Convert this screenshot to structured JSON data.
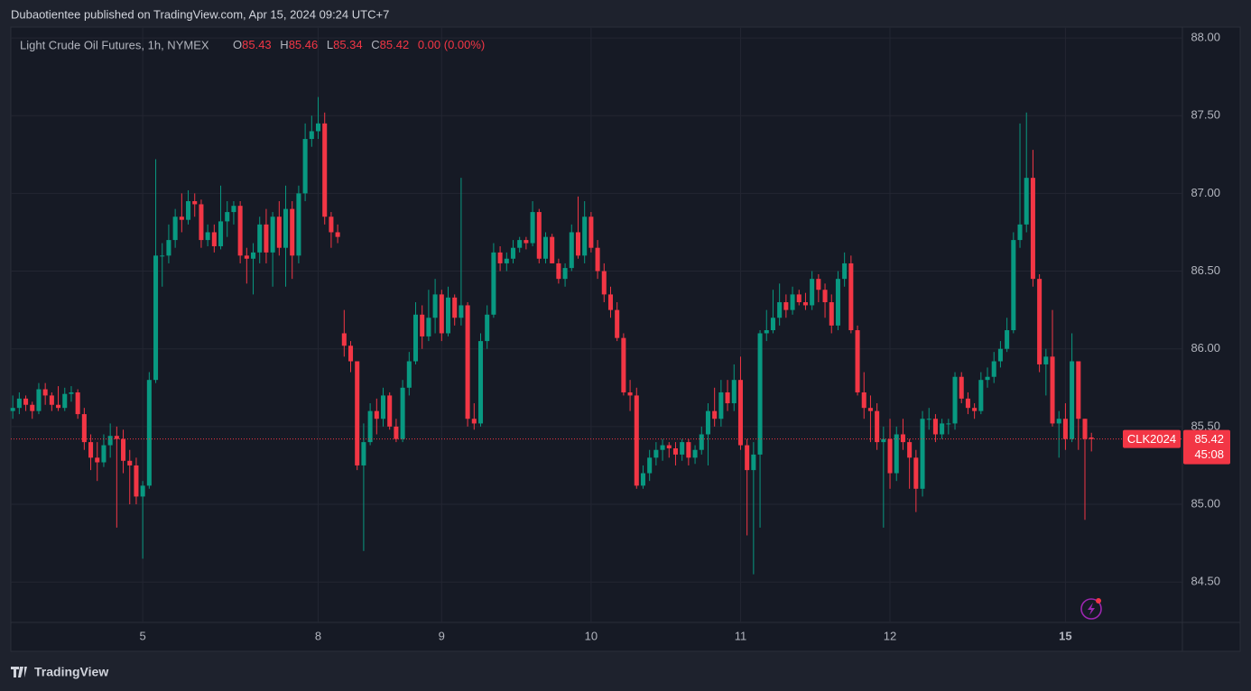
{
  "header": {
    "published": "Dubaotientee published on TradingView.com, Apr 15, 2024 09:24 UTC+7"
  },
  "footer": {
    "brand": "TradingView"
  },
  "chart_data": {
    "type": "candlestick",
    "legend": {
      "symbol": "Light Crude Oil Futures, 1h, NYMEX",
      "open_label": "O",
      "high_label": "H",
      "low_label": "L",
      "close_label": "C",
      "change": "0.00 (0.00%)"
    },
    "price_tag": {
      "ticker": "CLK2024",
      "countdown": "45:08"
    },
    "up_color": "#089981",
    "down_color": "#f23645",
    "grid": true,
    "xlim": [
      -0.3,
      180
    ],
    "ylim": [
      84.24,
      88.07
    ],
    "xticks": [
      {
        "value": 20,
        "label": "5"
      },
      {
        "value": 47,
        "label": "8"
      },
      {
        "value": 66,
        "label": "9"
      },
      {
        "value": 89,
        "label": "10"
      },
      {
        "value": 112,
        "label": "11"
      },
      {
        "value": 135,
        "label": "12"
      },
      {
        "value": 162,
        "label": "15"
      }
    ],
    "yticks": [
      {
        "value": 84.5,
        "label": "84.50"
      },
      {
        "value": 85,
        "label": "85.00"
      },
      {
        "value": 85.5,
        "label": "85.50"
      },
      {
        "value": 86,
        "label": "86.00"
      },
      {
        "value": 86.5,
        "label": "86.50"
      },
      {
        "value": 87,
        "label": "87.00"
      },
      {
        "value": 87.5,
        "label": "87.50"
      },
      {
        "value": 88,
        "label": "88.00"
      }
    ],
    "ohlc": [
      [
        85.6,
        85.7,
        85.55,
        85.62
      ],
      [
        85.62,
        85.72,
        85.58,
        85.68
      ],
      [
        85.68,
        85.7,
        85.6,
        85.64
      ],
      [
        85.64,
        85.66,
        85.55,
        85.6
      ],
      [
        85.6,
        85.78,
        85.58,
        85.74
      ],
      [
        85.74,
        85.78,
        85.64,
        85.7
      ],
      [
        85.7,
        85.72,
        85.6,
        85.64
      ],
      [
        85.64,
        85.76,
        85.6,
        85.62
      ],
      [
        85.62,
        85.75,
        85.6,
        85.71
      ],
      [
        85.71,
        85.76,
        85.66,
        85.72
      ],
      [
        85.72,
        85.74,
        85.55,
        85.58
      ],
      [
        85.58,
        85.62,
        85.35,
        85.4
      ],
      [
        85.4,
        85.45,
        85.22,
        85.3
      ],
      [
        85.3,
        85.4,
        85.15,
        85.27
      ],
      [
        85.27,
        85.45,
        85.24,
        85.38
      ],
      [
        85.38,
        85.52,
        85.3,
        85.44
      ],
      [
        85.44,
        85.5,
        84.85,
        85.42
      ],
      [
        85.42,
        85.48,
        85.2,
        85.28
      ],
      [
        85.28,
        85.35,
        85.0,
        85.25
      ],
      [
        85.25,
        85.3,
        85.0,
        85.05
      ],
      [
        85.05,
        85.15,
        84.65,
        85.12
      ],
      [
        85.12,
        85.85,
        85.1,
        85.8
      ],
      [
        85.8,
        87.22,
        85.78,
        86.6
      ],
      [
        86.6,
        86.68,
        86.4,
        86.6
      ],
      [
        86.6,
        86.8,
        86.55,
        86.7
      ],
      [
        86.7,
        86.9,
        86.65,
        86.85
      ],
      [
        86.85,
        87.0,
        86.75,
        86.83
      ],
      [
        86.83,
        87.02,
        86.8,
        86.95
      ],
      [
        86.95,
        87.0,
        86.85,
        86.93
      ],
      [
        86.93,
        86.96,
        86.65,
        86.7
      ],
      [
        86.7,
        86.8,
        86.66,
        86.75
      ],
      [
        86.75,
        86.8,
        86.62,
        86.66
      ],
      [
        86.66,
        87.05,
        86.64,
        86.82
      ],
      [
        86.82,
        86.95,
        86.72,
        86.88
      ],
      [
        86.88,
        86.95,
        86.8,
        86.92
      ],
      [
        86.92,
        86.95,
        86.55,
        86.6
      ],
      [
        86.6,
        86.65,
        86.42,
        86.58
      ],
      [
        86.58,
        86.68,
        86.35,
        86.62
      ],
      [
        86.62,
        86.85,
        86.55,
        86.8
      ],
      [
        86.8,
        86.9,
        86.55,
        86.62
      ],
      [
        86.62,
        86.88,
        86.4,
        86.85
      ],
      [
        86.85,
        86.95,
        86.6,
        86.65
      ],
      [
        86.65,
        87.05,
        86.4,
        86.9
      ],
      [
        86.9,
        86.95,
        86.45,
        86.6
      ],
      [
        86.6,
        87.05,
        86.55,
        87.0
      ],
      [
        87.0,
        87.45,
        86.95,
        87.35
      ],
      [
        87.35,
        87.5,
        87.3,
        87.4
      ],
      [
        87.4,
        87.62,
        87.35,
        87.45
      ],
      [
        87.45,
        87.52,
        86.8,
        86.85
      ],
      [
        86.85,
        86.88,
        86.65,
        86.75
      ],
      [
        86.75,
        86.8,
        86.68,
        86.72
      ],
      [
        86.1,
        86.25,
        85.95,
        86.02
      ],
      [
        86.02,
        86.05,
        85.85,
        85.92
      ],
      [
        85.92,
        85.92,
        85.22,
        85.25
      ],
      [
        85.25,
        85.52,
        84.7,
        85.4
      ],
      [
        85.4,
        85.65,
        85.38,
        85.6
      ],
      [
        85.6,
        85.68,
        85.45,
        85.55
      ],
      [
        85.55,
        85.75,
        85.5,
        85.7
      ],
      [
        85.7,
        85.72,
        85.48,
        85.5
      ],
      [
        85.5,
        85.55,
        85.4,
        85.42
      ],
      [
        85.42,
        85.8,
        85.4,
        85.75
      ],
      [
        85.75,
        85.98,
        85.7,
        85.92
      ],
      [
        85.92,
        86.3,
        85.9,
        86.22
      ],
      [
        86.22,
        86.28,
        86.0,
        86.08
      ],
      [
        86.08,
        86.38,
        86.05,
        86.2
      ],
      [
        86.2,
        86.45,
        86.1,
        86.35
      ],
      [
        86.35,
        86.38,
        86.05,
        86.1
      ],
      [
        86.1,
        86.4,
        86.08,
        86.33
      ],
      [
        86.33,
        86.35,
        86.15,
        86.2
      ],
      [
        86.2,
        87.1,
        86.15,
        86.28
      ],
      [
        86.28,
        86.3,
        85.5,
        85.55
      ],
      [
        85.55,
        85.65,
        85.48,
        85.52
      ],
      [
        85.52,
        86.1,
        85.5,
        86.05
      ],
      [
        86.05,
        86.28,
        86.0,
        86.22
      ],
      [
        86.22,
        86.68,
        86.2,
        86.62
      ],
      [
        86.62,
        86.66,
        86.5,
        86.55
      ],
      [
        86.55,
        86.62,
        86.5,
        86.58
      ],
      [
        86.58,
        86.7,
        86.55,
        86.65
      ],
      [
        86.65,
        86.72,
        86.62,
        86.7
      ],
      [
        86.7,
        86.72,
        86.64,
        86.68
      ],
      [
        86.68,
        86.95,
        86.66,
        86.88
      ],
      [
        86.88,
        86.9,
        86.55,
        86.58
      ],
      [
        86.58,
        86.75,
        86.55,
        86.72
      ],
      [
        86.72,
        86.74,
        86.55,
        86.55
      ],
      [
        86.55,
        86.58,
        86.42,
        86.45
      ],
      [
        86.45,
        86.55,
        86.4,
        86.52
      ],
      [
        86.52,
        86.8,
        86.5,
        86.75
      ],
      [
        86.75,
        86.98,
        86.58,
        86.6
      ],
      [
        86.6,
        86.95,
        86.55,
        86.85
      ],
      [
        86.85,
        86.88,
        86.62,
        86.65
      ],
      [
        86.65,
        86.7,
        86.45,
        86.5
      ],
      [
        86.5,
        86.55,
        86.3,
        86.35
      ],
      [
        86.35,
        86.4,
        86.2,
        86.25
      ],
      [
        86.25,
        86.3,
        86.05,
        86.07
      ],
      [
        86.07,
        86.1,
        85.7,
        85.72
      ],
      [
        85.72,
        85.8,
        85.6,
        85.7
      ],
      [
        85.7,
        85.75,
        85.1,
        85.12
      ],
      [
        85.12,
        85.25,
        85.1,
        85.2
      ],
      [
        85.2,
        85.35,
        85.15,
        85.3
      ],
      [
        85.3,
        85.4,
        85.25,
        85.35
      ],
      [
        85.35,
        85.42,
        85.28,
        85.38
      ],
      [
        85.38,
        85.4,
        85.3,
        85.36
      ],
      [
        85.36,
        85.4,
        85.25,
        85.32
      ],
      [
        85.32,
        85.42,
        85.28,
        85.4
      ],
      [
        85.4,
        85.42,
        85.25,
        85.3
      ],
      [
        85.3,
        85.38,
        85.26,
        85.35
      ],
      [
        85.35,
        85.5,
        85.32,
        85.45
      ],
      [
        85.45,
        85.65,
        85.25,
        85.6
      ],
      [
        85.6,
        85.75,
        85.5,
        85.55
      ],
      [
        85.55,
        85.8,
        85.5,
        85.72
      ],
      [
        85.72,
        85.8,
        85.6,
        85.65
      ],
      [
        85.65,
        85.9,
        85.6,
        85.8
      ],
      [
        85.8,
        85.95,
        85.35,
        85.38
      ],
      [
        85.38,
        85.42,
        84.8,
        85.22
      ],
      [
        85.22,
        85.4,
        84.55,
        85.32
      ],
      [
        85.32,
        86.12,
        84.85,
        86.1
      ],
      [
        86.1,
        86.25,
        86.05,
        86.12
      ],
      [
        86.12,
        86.38,
        86.1,
        86.2
      ],
      [
        86.2,
        86.42,
        86.15,
        86.3
      ],
      [
        86.3,
        86.35,
        86.2,
        86.25
      ],
      [
        86.25,
        86.4,
        86.22,
        86.35
      ],
      [
        86.35,
        86.38,
        86.28,
        86.3
      ],
      [
        86.3,
        86.36,
        86.25,
        86.28
      ],
      [
        86.28,
        86.5,
        86.25,
        86.45
      ],
      [
        86.45,
        86.48,
        86.3,
        86.38
      ],
      [
        86.38,
        86.42,
        86.2,
        86.3
      ],
      [
        86.3,
        86.35,
        86.1,
        86.15
      ],
      [
        86.15,
        86.5,
        86.12,
        86.45
      ],
      [
        86.45,
        86.62,
        86.4,
        86.55
      ],
      [
        86.55,
        86.6,
        86.1,
        86.12
      ],
      [
        86.12,
        86.15,
        85.7,
        85.72
      ],
      [
        85.72,
        85.85,
        85.55,
        85.62
      ],
      [
        85.62,
        85.7,
        85.4,
        85.6
      ],
      [
        85.6,
        85.65,
        85.35,
        85.4
      ],
      [
        85.4,
        85.5,
        84.85,
        85.42
      ],
      [
        85.42,
        85.55,
        85.1,
        85.2
      ],
      [
        85.2,
        85.5,
        85.15,
        85.45
      ],
      [
        85.45,
        85.55,
        85.35,
        85.4
      ],
      [
        85.4,
        85.42,
        85.1,
        85.3
      ],
      [
        85.3,
        85.35,
        84.95,
        85.1
      ],
      [
        85.1,
        85.6,
        85.05,
        85.55
      ],
      [
        85.55,
        85.62,
        85.48,
        85.55
      ],
      [
        85.55,
        85.58,
        85.4,
        85.45
      ],
      [
        85.45,
        85.55,
        85.42,
        85.52
      ],
      [
        85.52,
        85.55,
        85.45,
        85.52
      ],
      [
        85.52,
        85.85,
        85.48,
        85.82
      ],
      [
        85.82,
        85.85,
        85.65,
        85.68
      ],
      [
        85.68,
        85.72,
        85.58,
        85.62
      ],
      [
        85.62,
        85.65,
        85.55,
        85.6
      ],
      [
        85.6,
        85.85,
        85.58,
        85.8
      ],
      [
        85.8,
        85.88,
        85.75,
        85.82
      ],
      [
        85.82,
        85.98,
        85.78,
        85.92
      ],
      [
        85.92,
        86.05,
        85.88,
        86.0
      ],
      [
        86.0,
        86.2,
        85.98,
        86.12
      ],
      [
        86.12,
        86.75,
        86.1,
        86.7
      ],
      [
        86.7,
        87.45,
        86.65,
        86.8
      ],
      [
        86.8,
        87.52,
        86.75,
        87.1
      ],
      [
        87.1,
        87.28,
        86.4,
        86.45
      ],
      [
        86.45,
        86.48,
        85.85,
        85.9
      ],
      [
        85.9,
        86.0,
        85.7,
        85.95
      ],
      [
        85.95,
        86.25,
        85.5,
        85.52
      ],
      [
        85.52,
        85.6,
        85.3,
        85.55
      ],
      [
        85.55,
        85.65,
        85.35,
        85.42
      ],
      [
        85.42,
        86.1,
        85.4,
        85.92
      ],
      [
        85.92,
        85.92,
        85.35,
        85.55
      ],
      [
        85.55,
        85.55,
        84.9,
        85.42
      ],
      [
        85.43,
        85.46,
        85.34,
        85.42
      ]
    ]
  }
}
